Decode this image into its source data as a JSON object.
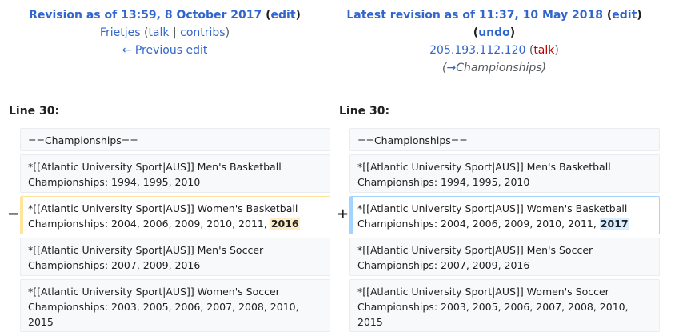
{
  "left_header": {
    "title": "Revision as of 13:59, 8 October 2017",
    "edit": "edit",
    "user": "Frietjes",
    "talk": "talk",
    "contribs": "contribs",
    "prev_edit": "← Previous edit"
  },
  "right_header": {
    "title": "Latest revision as of 11:37, 10 May 2018",
    "edit": "edit",
    "undo": "undo",
    "user": "205.193.112.120",
    "talk": "talk",
    "summary_arrow": "→",
    "summary": "Championships"
  },
  "line_label": "Line 30:",
  "rows": {
    "r1": "==Championships==",
    "r2": "*[[Atlantic University Sport|AUS]] Men's Basketball Championships: 1994, 1995, 2010",
    "r3_prefix": "*[[Atlantic University Sport|AUS]] Women's Basketball Championships: 2004, 2006, 2009, 2010, 2011,",
    "r3_old": "2016",
    "r3_new": "2017",
    "r4": "*[[Atlantic University Sport|AUS]] Men's Soccer Championships: 2007, 2009, 2016",
    "r5": "*[[Atlantic University Sport|AUS]] Women's Soccer Championships: 2003, 2005, 2006, 2007, 2008, 2010, 2015"
  },
  "markers": {
    "minus": "−",
    "plus": "+"
  }
}
